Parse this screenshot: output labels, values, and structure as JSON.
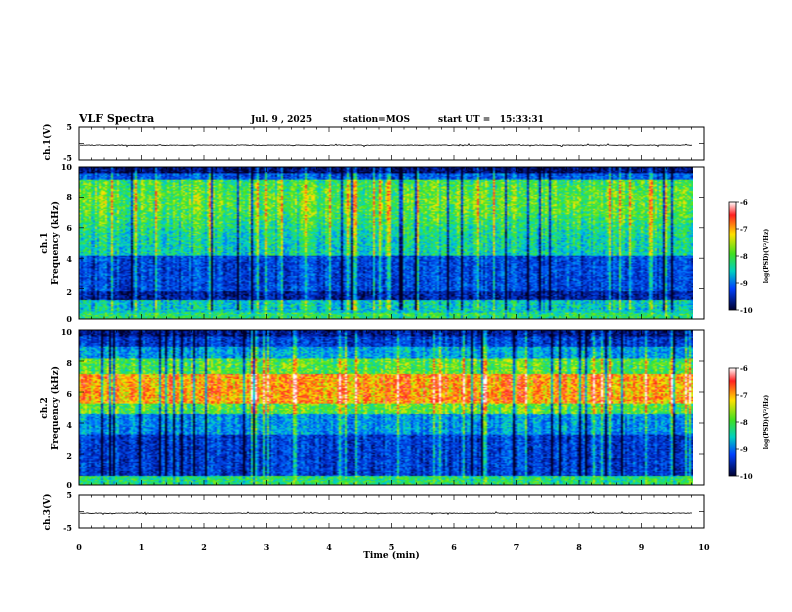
{
  "header": {
    "title": "VLF Spectra",
    "date": "Jul. 9 , 2025",
    "station": "station=MOS",
    "start": "start UT =   15:33:31"
  },
  "chart_data": [
    {
      "type": "line",
      "id": "ch1-waveform",
      "ylabel": "ch.1(V)",
      "ylim": [
        -5,
        5
      ],
      "ytick_labels": [
        "5",
        "-5"
      ],
      "baseline": -0.5,
      "xlim": [
        0,
        10
      ],
      "data_extent_min": 9.82
    },
    {
      "type": "heatmap",
      "id": "ch1-spectrogram",
      "ylabel_line1": "ch.1",
      "ylabel_line2": "Frequency (kHz)",
      "ylim": [
        0,
        10
      ],
      "ytick_labels": [
        "0",
        "2",
        "4",
        "6",
        "8",
        "10"
      ],
      "xlim": [
        0,
        10
      ],
      "data_extent_min": 9.82,
      "colorbar": {
        "range": [
          -10,
          -6
        ],
        "tick_labels": [
          "-6",
          "-7",
          "-8",
          "-9",
          "-10"
        ],
        "label": "log(PSD)(V²/Hz)"
      }
    },
    {
      "type": "heatmap",
      "id": "ch2-spectrogram",
      "ylabel_line1": "ch.2",
      "ylabel_line2": "Frequency (kHz)",
      "ylim": [
        0,
        10
      ],
      "ytick_labels": [
        "0",
        "2",
        "4",
        "6",
        "8",
        "10"
      ],
      "xlim": [
        0,
        10
      ],
      "data_extent_min": 9.82,
      "colorbar": {
        "range": [
          -10,
          -6
        ],
        "tick_labels": [
          "-6",
          "-7",
          "-8",
          "-9",
          "-10"
        ],
        "label": "log(PSD)(V²/Hz)"
      }
    },
    {
      "type": "line",
      "id": "ch3-waveform",
      "ylabel": "ch.3(V)",
      "ylim": [
        -5,
        5
      ],
      "ytick_labels": [
        "5",
        "-5"
      ],
      "baseline": -0.5,
      "xlim": [
        0,
        10
      ],
      "data_extent_min": 9.82
    }
  ],
  "xaxis": {
    "label": "Time (min)",
    "tick_labels": [
      "0",
      "1",
      "2",
      "3",
      "4",
      "5",
      "6",
      "7",
      "8",
      "9",
      "10"
    ]
  }
}
